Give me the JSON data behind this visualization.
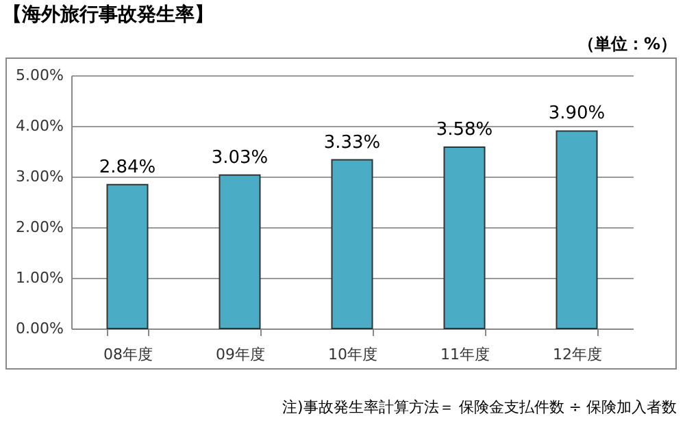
{
  "chart_data": {
    "type": "bar",
    "title": "【海外旅行事故発生率】",
    "subtitle": "（単位：%）",
    "categories": [
      "08年度",
      "09年度",
      "10年度",
      "11年度",
      "12年度"
    ],
    "values": [
      2.84,
      3.03,
      3.33,
      3.58,
      3.9
    ],
    "value_labels": [
      "2.84%",
      "3.03%",
      "3.33%",
      "3.58%",
      "3.90%"
    ],
    "color": "#4bacc6",
    "ylim": [
      0,
      5
    ],
    "yticks": [
      {
        "value": 0,
        "label": "0.00%"
      },
      {
        "value": 1,
        "label": "1.00%"
      },
      {
        "value": 2,
        "label": "2.00%"
      },
      {
        "value": 3,
        "label": "3.00%"
      },
      {
        "value": 4,
        "label": "4.00%"
      },
      {
        "value": 5,
        "label": "5.00%"
      }
    ],
    "grid": "y",
    "annotations": [
      "注)事故発生率計算方法＝ 保険金支払件数 ÷ 保険加入者数"
    ]
  }
}
